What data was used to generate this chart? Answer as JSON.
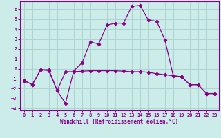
{
  "xlabel": "Windchill (Refroidissement éolien,°C)",
  "background_color": "#ccecea",
  "grid_color": "#aed4d2",
  "line_color": "#880088",
  "xlim": [
    -0.5,
    23.5
  ],
  "ylim": [
    -4.2,
    6.8
  ],
  "yticks": [
    -4,
    -3,
    -2,
    -1,
    0,
    1,
    2,
    3,
    4,
    5,
    6
  ],
  "xticks": [
    0,
    1,
    2,
    3,
    4,
    5,
    6,
    7,
    8,
    9,
    10,
    11,
    12,
    13,
    14,
    15,
    16,
    17,
    18,
    19,
    20,
    21,
    22,
    23
  ],
  "line1_x": [
    0,
    1,
    2,
    3,
    4,
    5,
    6,
    7,
    8,
    9,
    10,
    11,
    12,
    13,
    14,
    15,
    16,
    17,
    18,
    19,
    20,
    21,
    22,
    23
  ],
  "line1_y": [
    -1.2,
    -1.6,
    -0.1,
    -0.1,
    -2.2,
    -3.5,
    -0.2,
    0.6,
    2.7,
    2.5,
    4.4,
    4.6,
    4.6,
    6.3,
    6.4,
    4.9,
    4.8,
    2.9,
    -0.7,
    -0.8,
    -1.6,
    -1.6,
    -2.5,
    -2.5
  ],
  "line2_x": [
    0,
    1,
    2,
    3,
    4,
    5,
    6,
    7,
    8,
    9,
    10,
    11,
    12,
    13,
    14,
    15,
    16,
    17,
    18,
    19,
    20,
    21,
    22,
    23
  ],
  "line2_y": [
    -1.2,
    -1.6,
    -0.1,
    -0.2,
    -2.2,
    -0.3,
    -0.3,
    -0.25,
    -0.2,
    -0.2,
    -0.2,
    -0.2,
    -0.25,
    -0.3,
    -0.3,
    -0.35,
    -0.5,
    -0.6,
    -0.7,
    -0.8,
    -1.6,
    -1.6,
    -2.5,
    -2.5
  ]
}
